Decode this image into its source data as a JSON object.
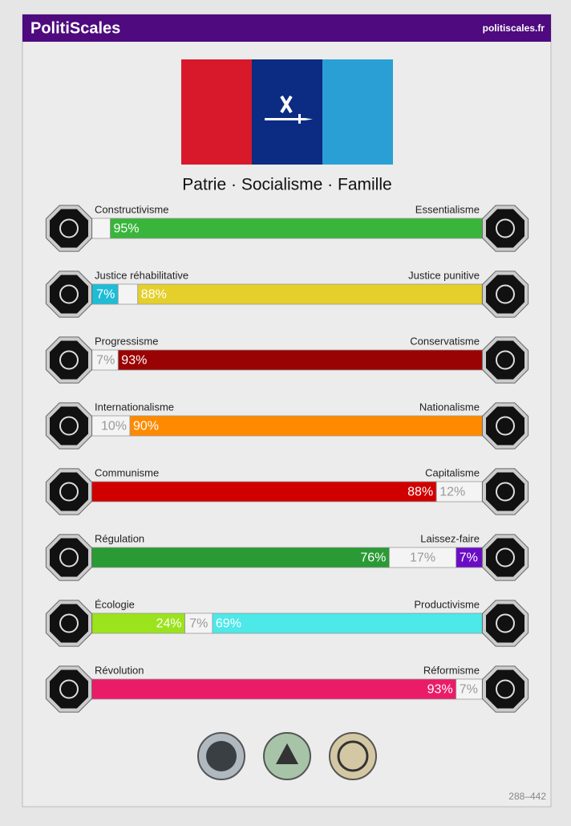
{
  "header": {
    "title": "PolitiScales",
    "site": "politiscales.fr"
  },
  "slogan": "Patrie · Socialisme · Famille",
  "axes": [
    {
      "left": "Constructivisme",
      "right": "Essentialisme",
      "segments": [
        {
          "value": 5,
          "color": "#f4f4f4"
        },
        {
          "value": 95,
          "label": "95%",
          "color": "#38b53a"
        }
      ]
    },
    {
      "left": "Justice réhabilitative",
      "right": "Justice punitive",
      "segments": [
        {
          "value": 7,
          "label": "7%",
          "color": "#1fbcd6"
        },
        {
          "value": 5,
          "color": "#f4f4f4"
        },
        {
          "value": 88,
          "label": "88%",
          "color": "#e5cf2a"
        }
      ]
    },
    {
      "left": "Progressisme",
      "right": "Conservatisme",
      "segments": [
        {
          "value": 7,
          "label": "7%",
          "color": "#f4f4f4"
        },
        {
          "value": 93,
          "label": "93%",
          "color": "#9a0303"
        }
      ]
    },
    {
      "left": "Internationalisme",
      "right": "Nationalisme",
      "segments": [
        {
          "value": 10,
          "label": "10%",
          "color": "#f4f4f4"
        },
        {
          "value": 90,
          "label": "90%",
          "color": "#ff8a00"
        }
      ]
    },
    {
      "left": "Communisme",
      "right": "Capitalisme",
      "segments": [
        {
          "value": 88,
          "label": "88%",
          "color": "#d00000"
        },
        {
          "value": 12,
          "label": "12%",
          "color": "#f4f4f4"
        }
      ]
    },
    {
      "left": "Régulation",
      "right": "Laissez-faire",
      "segments": [
        {
          "value": 76,
          "label": "76%",
          "color": "#2a9a35"
        },
        {
          "value": 17,
          "label": "17%",
          "color": "#f4f4f4"
        },
        {
          "value": 7,
          "label": "7%",
          "color": "#6a0dc4"
        }
      ]
    },
    {
      "left": "Écologie",
      "right": "Productivisme",
      "segments": [
        {
          "value": 24,
          "label": "24%",
          "color": "#9be31c"
        },
        {
          "value": 7,
          "label": "7%",
          "color": "#f4f4f4"
        },
        {
          "value": 69,
          "label": "69%",
          "color": "#4de8e8"
        }
      ]
    },
    {
      "left": "Révolution",
      "right": "Réformisme",
      "segments": [
        {
          "value": 93,
          "label": "93%",
          "color": "#ea1c68"
        },
        {
          "value": 7,
          "label": "7%",
          "color": "#f4f4f4"
        }
      ]
    }
  ],
  "footer": "288–442"
}
